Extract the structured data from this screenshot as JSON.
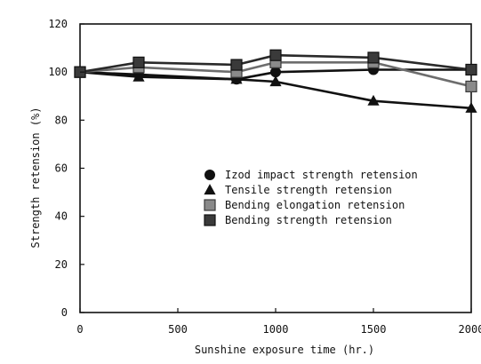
{
  "chart_data": {
    "type": "line",
    "title": "",
    "xlabel": "Sunshine exposure time (hr.)",
    "ylabel": "Strength retension (%)",
    "xlim": [
      0,
      2000
    ],
    "ylim": [
      0,
      120
    ],
    "xticks": [
      "0",
      "500",
      "1000",
      "1500",
      "2000"
    ],
    "yticks": [
      "0",
      "20",
      "40",
      "60",
      "80",
      "100",
      "120"
    ],
    "grid": false,
    "legend_position": "center-right",
    "series": [
      {
        "name": "Izod impact strength retension",
        "marker": "circle",
        "color": "#111111",
        "x": [
          0,
          300,
          800,
          1000,
          1500,
          2000
        ],
        "y": [
          100,
          99,
          97,
          100,
          101,
          101
        ]
      },
      {
        "name": "Tensile strength retension",
        "marker": "triangle",
        "color": "#111111",
        "x": [
          0,
          300,
          800,
          1000,
          1500,
          2000
        ],
        "y": [
          100,
          98,
          97,
          96,
          88,
          85
        ]
      },
      {
        "name": "Bending elongation retension",
        "marker": "square-light",
        "color": "#6d6d6d",
        "x": [
          0,
          300,
          800,
          1000,
          1500,
          2000
        ],
        "y": [
          100,
          102,
          100,
          104,
          104,
          94
        ]
      },
      {
        "name": "Bending strength retension",
        "marker": "square-dark",
        "color": "#2a2a2a",
        "x": [
          0,
          300,
          800,
          1000,
          1500,
          2000
        ],
        "y": [
          100,
          104,
          103,
          107,
          106,
          101
        ]
      }
    ]
  }
}
